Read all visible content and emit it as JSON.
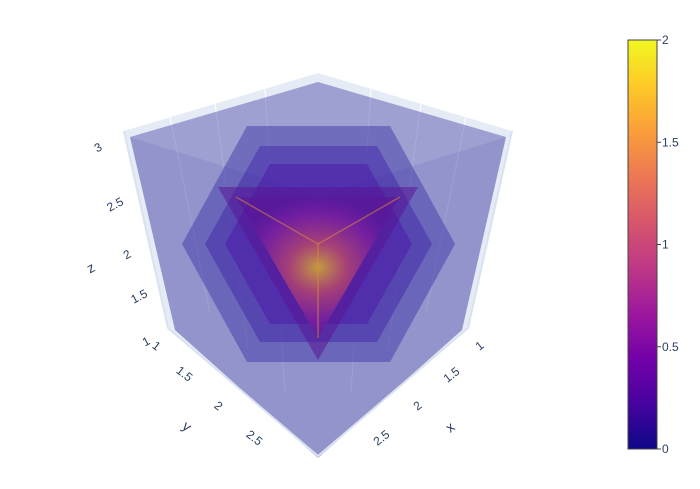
{
  "chart_data": {
    "type": "isosurface",
    "x": {
      "label": "x",
      "ticks": [
        "1",
        "1.5",
        "2",
        "2.5"
      ],
      "range": [
        1,
        3
      ]
    },
    "y": {
      "label": "y",
      "ticks": [
        "1",
        "1.5",
        "2",
        "2.5"
      ],
      "range": [
        1,
        3
      ]
    },
    "z": {
      "label": "z",
      "ticks": [
        "1",
        "1.5",
        "2",
        "2.5",
        "3"
      ],
      "range": [
        1,
        3
      ]
    },
    "colorscale": "plasma",
    "colorbar": {
      "min": 0,
      "max": 2,
      "ticks": [
        "0",
        "0.5",
        "1",
        "1.5",
        "2"
      ],
      "tick_values": [
        0,
        0.5,
        1,
        1.5,
        2
      ]
    },
    "isosurfaces": [
      0,
      0.4,
      0.8,
      1.2,
      1.6
    ],
    "opacity": 0.35,
    "colors": {
      "outer": "#0d0887",
      "mid": "#7e03a8",
      "inner": "#cc4778",
      "core": "#f0f921",
      "background": "#e5ecf6"
    }
  }
}
